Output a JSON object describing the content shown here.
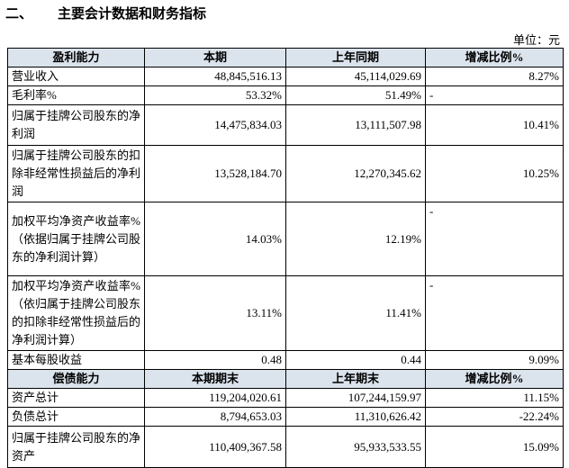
{
  "header": {
    "section": "二、",
    "title": "主要会计数据和财务指标",
    "unit": "单位：元"
  },
  "table": {
    "sections": [
      {
        "header": [
          "盈利能力",
          "本期",
          "上年同期",
          "增减比例%"
        ],
        "rows": [
          [
            "营业收入",
            "48,845,516.13",
            "45,114,029.69",
            "8.27%"
          ],
          [
            "毛利率%",
            "53.32%",
            "51.49%",
            "-"
          ],
          [
            "归属于挂牌公司股东的净利润",
            "14,475,834.03",
            "13,111,507.98",
            "10.41%"
          ],
          [
            "归属于挂牌公司股东的扣除非经常性损益后的净利润",
            "13,528,184.70",
            "12,270,345.62",
            "10.25%"
          ],
          [
            "加权平均净资产收益率%（依据归属于挂牌公司股东的净利润计算）",
            "14.03%",
            "12.19%",
            "-"
          ],
          [
            "加权平均净资产收益率%（依归属于挂牌公司股东的扣除非经常性损益后的净利润计算）",
            "13.11%",
            "11.41%",
            "-"
          ],
          [
            "基本每股收益",
            "0.48",
            "0.44",
            "9.09%"
          ]
        ]
      },
      {
        "header": [
          "偿债能力",
          "本期期末",
          "上年期末",
          "增减比例%"
        ],
        "rows": [
          [
            "资产总计",
            "119,204,020.61",
            "107,244,159.97",
            "11.15%"
          ],
          [
            "负债总计",
            "8,794,653.03",
            "11,310,626.42",
            "-22.24%"
          ],
          [
            "归属于挂牌公司股东的净资产",
            "110,409,367.58",
            "95,933,533.55",
            "15.09%"
          ]
        ]
      }
    ]
  }
}
